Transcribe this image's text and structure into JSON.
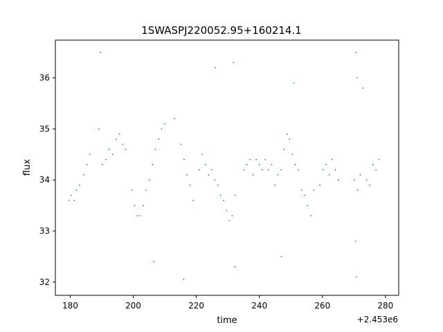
{
  "chart_data": {
    "type": "scatter",
    "title": "1SWASPJ220052.95+160214.1",
    "xlabel": "time",
    "ylabel": "flux",
    "x_offset_label": "+2.453e6",
    "xlim": [
      175.3,
      284.2
    ],
    "ylim": [
      31.74,
      36.74
    ],
    "x_ticks": [
      180,
      200,
      220,
      240,
      260,
      280
    ],
    "y_ticks": [
      32,
      33,
      34,
      35,
      36
    ],
    "grid": false,
    "legend": "none",
    "marker_color": "#1f77b4",
    "series": [
      {
        "points": [
          [
            179.6,
            33.6
          ],
          [
            180.4,
            33.7
          ],
          [
            181.3,
            33.6
          ],
          [
            182.0,
            33.8
          ],
          [
            183.0,
            33.9
          ],
          [
            184.3,
            34.1
          ],
          [
            185.3,
            34.3
          ],
          [
            186.2,
            34.5
          ],
          [
            189.1,
            35.0
          ],
          [
            190.2,
            34.3
          ],
          [
            191.3,
            34.4
          ],
          [
            192.4,
            34.6
          ],
          [
            193.5,
            34.5
          ],
          [
            194.6,
            34.8
          ],
          [
            195.6,
            34.9
          ],
          [
            196.7,
            34.7
          ],
          [
            197.6,
            34.6
          ],
          [
            199.6,
            33.8
          ],
          [
            200.4,
            33.5
          ],
          [
            201.3,
            33.3
          ],
          [
            202.2,
            33.3
          ],
          [
            203.2,
            33.5
          ],
          [
            204.1,
            33.8
          ],
          [
            205.1,
            34.0
          ],
          [
            206.1,
            34.3
          ],
          [
            207.0,
            34.6
          ],
          [
            208.0,
            34.8
          ],
          [
            209.0,
            35.0
          ],
          [
            210.0,
            35.1
          ],
          [
            213.1,
            35.2
          ],
          [
            215.1,
            34.7
          ],
          [
            216.1,
            34.4
          ],
          [
            217.0,
            34.1
          ],
          [
            218.0,
            33.9
          ],
          [
            219.0,
            33.6
          ],
          [
            220.9,
            34.2
          ],
          [
            221.9,
            34.5
          ],
          [
            222.9,
            34.3
          ],
          [
            223.9,
            34.1
          ],
          [
            224.9,
            34.2
          ],
          [
            225.9,
            34.0
          ],
          [
            226.8,
            33.9
          ],
          [
            227.7,
            33.7
          ],
          [
            228.7,
            33.6
          ],
          [
            229.6,
            33.4
          ],
          [
            230.5,
            33.2
          ],
          [
            231.4,
            33.3
          ],
          [
            232.3,
            33.7
          ],
          [
            235.1,
            34.2
          ],
          [
            236.0,
            34.3
          ],
          [
            237.0,
            34.4
          ],
          [
            238.0,
            34.1
          ],
          [
            239.0,
            34.4
          ],
          [
            240.0,
            34.3
          ],
          [
            240.9,
            34.2
          ],
          [
            241.9,
            34.4
          ],
          [
            242.9,
            34.2
          ],
          [
            243.9,
            34.3
          ],
          [
            244.9,
            33.9
          ],
          [
            245.9,
            34.1
          ],
          [
            246.9,
            34.2
          ],
          [
            247.8,
            34.6
          ],
          [
            248.8,
            34.9
          ],
          [
            249.6,
            34.8
          ],
          [
            250.5,
            34.5
          ],
          [
            251.4,
            34.3
          ],
          [
            252.4,
            34.2
          ],
          [
            253.4,
            33.8
          ],
          [
            254.3,
            33.7
          ],
          [
            255.3,
            33.5
          ],
          [
            256.3,
            33.3
          ],
          [
            257.3,
            33.8
          ],
          [
            259.2,
            33.9
          ],
          [
            260.2,
            34.2
          ],
          [
            261.2,
            34.3
          ],
          [
            262.2,
            34.1
          ],
          [
            263.1,
            34.4
          ],
          [
            264.1,
            34.2
          ],
          [
            265.1,
            34.0
          ],
          [
            270.1,
            34.0
          ],
          [
            271.1,
            33.8
          ],
          [
            272.0,
            34.1
          ],
          [
            274.0,
            34.0
          ],
          [
            275.0,
            33.9
          ],
          [
            276.0,
            34.3
          ],
          [
            277.0,
            34.2
          ],
          [
            278.0,
            34.4
          ],
          [
            189.6,
            36.5
          ],
          [
            226.0,
            36.2
          ],
          [
            231.8,
            36.3
          ],
          [
            270.6,
            36.5
          ],
          [
            271.0,
            36.0
          ],
          [
            270.8,
            32.1
          ],
          [
            206.5,
            32.4
          ],
          [
            232.3,
            32.3
          ],
          [
            216.0,
            32.05
          ],
          [
            247.0,
            32.5
          ],
          [
            270.5,
            32.8
          ],
          [
            251.0,
            35.9
          ],
          [
            272.8,
            35.8
          ]
        ]
      }
    ]
  }
}
